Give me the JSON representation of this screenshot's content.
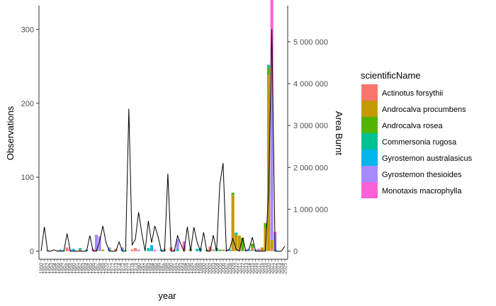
{
  "chart_data": {
    "type": "bar",
    "subtype": "stacked bar with secondary-axis line",
    "title": "",
    "xlabel": "year",
    "ylabel": "Observations",
    "y2label": "Area Burnt",
    "ylim": [
      0,
      320
    ],
    "y2lim": [
      0,
      5650000
    ],
    "yticks": [
      "0",
      "100",
      "200",
      "300"
    ],
    "y2ticks": [
      "0",
      "1 000 000",
      "2 000 000",
      "3 000 000",
      "4 000 000",
      "5 000 000"
    ],
    "x_tick_labels": [
      "1950",
      "1951",
      "1952",
      "1953",
      "1954",
      "1955",
      "1956",
      "1957",
      "1958",
      "1959",
      "1960",
      "1961",
      "1962",
      "1963",
      "1964",
      "1965",
      "1966",
      "1967",
      "1968",
      "1969",
      "1970",
      "1971",
      "1972",
      "1973",
      "1974",
      "1975",
      "1976",
      "1977",
      "1978",
      "1979",
      "1980",
      "1981",
      "1982",
      "1983",
      "1984",
      "1985",
      "1986",
      "1987",
      "1988",
      "1989",
      "1990",
      "1991",
      "1992",
      "1993",
      "1994",
      "1995",
      "1996",
      "1997",
      "1998",
      "1999",
      "2000",
      "2001",
      "2002",
      "2003",
      "2004",
      "2005",
      "2006",
      "2007",
      "2008",
      "2009",
      "2010",
      "2011",
      "2012",
      "2013",
      "2014",
      "2015",
      "2016",
      "2017",
      "2018",
      "2019",
      "2020",
      "2021",
      "2022",
      "2023",
      "2024",
      "2025"
    ],
    "legend_title": "scientificName",
    "legend_position": "right",
    "grid": false,
    "series": [
      {
        "name": "Actinotus forsythii",
        "color": "#F8766D",
        "points": [
          [
            1958,
            5
          ],
          [
            1962,
            2
          ],
          [
            1973,
            3
          ],
          [
            1978,
            2
          ],
          [
            1979,
            4
          ],
          [
            1990,
            5
          ],
          [
            1994,
            3
          ],
          [
            2002,
            6
          ],
          [
            2011,
            3
          ],
          [
            2015,
            4
          ],
          [
            2021,
            3
          ]
        ]
      },
      {
        "name": "Androcalva procumbens",
        "color": "#C49A00",
        "points": [
          [
            1955,
            1
          ],
          [
            1969,
            2
          ],
          [
            1988,
            3
          ],
          [
            2006,
            2
          ],
          [
            2009,
            76
          ],
          [
            2010,
            22
          ],
          [
            2011,
            18
          ],
          [
            2018,
            5
          ],
          [
            2019,
            30
          ],
          [
            2020,
            238
          ],
          [
            2021,
            12
          ]
        ]
      },
      {
        "name": "Androcalva rosea",
        "color": "#53B400",
        "points": [
          [
            1957,
            1
          ],
          [
            1967,
            2
          ],
          [
            1976,
            1
          ],
          [
            1996,
            3
          ],
          [
            2001,
            2
          ],
          [
            2004,
            4
          ],
          [
            2009,
            3
          ],
          [
            2012,
            18
          ],
          [
            2015,
            6
          ],
          [
            2019,
            8
          ],
          [
            2020,
            10
          ]
        ]
      },
      {
        "name": "Commersonia rugosa",
        "color": "#00C094",
        "points": [
          [
            1952,
            1
          ],
          [
            1962,
            2
          ],
          [
            1971,
            2
          ],
          [
            1983,
            4
          ],
          [
            1992,
            2
          ],
          [
            1998,
            3
          ],
          [
            2005,
            2
          ],
          [
            2010,
            3
          ],
          [
            2016,
            2
          ],
          [
            2020,
            4
          ]
        ]
      },
      {
        "name": "Gyrostemon australasicus",
        "color": "#00B6EB",
        "points": [
          [
            1956,
            2
          ],
          [
            1960,
            3
          ],
          [
            1964,
            2
          ],
          [
            1975,
            3
          ],
          [
            1984,
            8
          ],
          [
            1987,
            2
          ],
          [
            1999,
            4
          ],
          [
            2008,
            2
          ],
          [
            2014,
            2
          ],
          [
            2022,
            2
          ]
        ]
      },
      {
        "name": "Gyrostemon thesioides",
        "color": "#A58AFF",
        "points": [
          [
            1967,
            20
          ],
          [
            1968,
            20
          ],
          [
            1971,
            3
          ],
          [
            1980,
            2
          ],
          [
            1992,
            14
          ],
          [
            2003,
            2
          ],
          [
            2013,
            2
          ],
          [
            2021,
            195
          ],
          [
            2022,
            20
          ]
        ]
      },
      {
        "name": "Monotaxis macrophylla",
        "color": "#FB61D7",
        "points": [
          [
            1959,
            2
          ],
          [
            1966,
            3
          ],
          [
            1975,
            2
          ],
          [
            1985,
            2
          ],
          [
            1991,
            2
          ],
          [
            1994,
            10
          ],
          [
            2007,
            2
          ],
          [
            2017,
            3
          ],
          [
            2021,
            165
          ],
          [
            2022,
            4
          ]
        ]
      }
    ],
    "line": {
      "name": "Area Burnt",
      "color": "#000000",
      "points": [
        [
          1950,
          0
        ],
        [
          1951,
          580000
        ],
        [
          1952,
          0
        ],
        [
          1953,
          0
        ],
        [
          1954,
          30000
        ],
        [
          1955,
          0
        ],
        [
          1956,
          0
        ],
        [
          1957,
          0
        ],
        [
          1958,
          420000
        ],
        [
          1959,
          0
        ],
        [
          1960,
          0
        ],
        [
          1961,
          0
        ],
        [
          1962,
          0
        ],
        [
          1963,
          0
        ],
        [
          1964,
          0
        ],
        [
          1965,
          370000
        ],
        [
          1966,
          0
        ],
        [
          1967,
          0
        ],
        [
          1968,
          230000
        ],
        [
          1969,
          600000
        ],
        [
          1970,
          200000
        ],
        [
          1971,
          0
        ],
        [
          1972,
          0
        ],
        [
          1973,
          0
        ],
        [
          1974,
          220000
        ],
        [
          1975,
          0
        ],
        [
          1976,
          0
        ],
        [
          1977,
          3400000
        ],
        [
          1978,
          150000
        ],
        [
          1979,
          280000
        ],
        [
          1980,
          930000
        ],
        [
          1981,
          420000
        ],
        [
          1982,
          0
        ],
        [
          1983,
          720000
        ],
        [
          1984,
          200000
        ],
        [
          1985,
          600000
        ],
        [
          1986,
          340000
        ],
        [
          1987,
          0
        ],
        [
          1988,
          0
        ],
        [
          1989,
          1850000
        ],
        [
          1990,
          0
        ],
        [
          1991,
          0
        ],
        [
          1992,
          370000
        ],
        [
          1993,
          160000
        ],
        [
          1994,
          0
        ],
        [
          1995,
          580000
        ],
        [
          1996,
          0
        ],
        [
          1997,
          570000
        ],
        [
          1998,
          220000
        ],
        [
          1999,
          0
        ],
        [
          2000,
          450000
        ],
        [
          2001,
          0
        ],
        [
          2002,
          0
        ],
        [
          2003,
          380000
        ],
        [
          2004,
          0
        ],
        [
          2005,
          1600000
        ],
        [
          2006,
          2100000
        ],
        [
          2007,
          0
        ],
        [
          2008,
          50000
        ],
        [
          2009,
          300000
        ],
        [
          2010,
          50000
        ],
        [
          2011,
          0
        ],
        [
          2012,
          320000
        ],
        [
          2013,
          0
        ],
        [
          2014,
          50000
        ],
        [
          2015,
          330000
        ],
        [
          2016,
          0
        ],
        [
          2017,
          0
        ],
        [
          2018,
          0
        ],
        [
          2019,
          0
        ],
        [
          2020,
          1400000
        ],
        [
          2021,
          5300000
        ],
        [
          2022,
          0
        ],
        [
          2023,
          0
        ],
        [
          2024,
          0
        ],
        [
          2025,
          120000
        ]
      ]
    }
  }
}
